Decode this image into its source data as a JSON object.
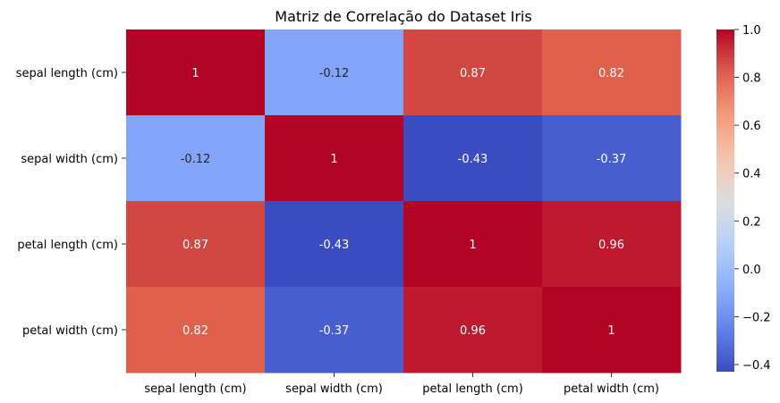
{
  "chart_data": {
    "type": "heatmap",
    "title": "Matriz de Correlação do Dataset Iris",
    "x_categories": [
      "sepal length (cm)",
      "sepal width (cm)",
      "petal length (cm)",
      "petal width (cm)"
    ],
    "y_categories": [
      "sepal length (cm)",
      "sepal width (cm)",
      "petal length (cm)",
      "petal width (cm)"
    ],
    "values": [
      [
        1,
        -0.12,
        0.87,
        0.82
      ],
      [
        -0.12,
        1,
        -0.43,
        -0.37
      ],
      [
        0.87,
        -0.43,
        1,
        0.96
      ],
      [
        0.82,
        -0.37,
        0.96,
        1
      ]
    ],
    "cell_labels": [
      [
        "1",
        "-0.12",
        "0.87",
        "0.82"
      ],
      [
        "-0.12",
        "1",
        "-0.43",
        "-0.37"
      ],
      [
        "0.87",
        "-0.43",
        "1",
        "0.96"
      ],
      [
        "0.82",
        "-0.37",
        "0.96",
        "1"
      ]
    ],
    "colormap": "coolwarm",
    "color_range": [
      -0.43,
      1.0
    ],
    "colorbar_ticks": [
      1.0,
      0.8,
      0.6,
      0.4,
      0.2,
      0.0,
      -0.2,
      -0.4
    ],
    "colorbar_tick_labels": [
      "1.0",
      "0.8",
      "0.6",
      "0.4",
      "0.2",
      "0.0",
      "−0.2",
      "−0.4"
    ],
    "colorbar_position": "right",
    "grid": false,
    "annotations": true
  }
}
